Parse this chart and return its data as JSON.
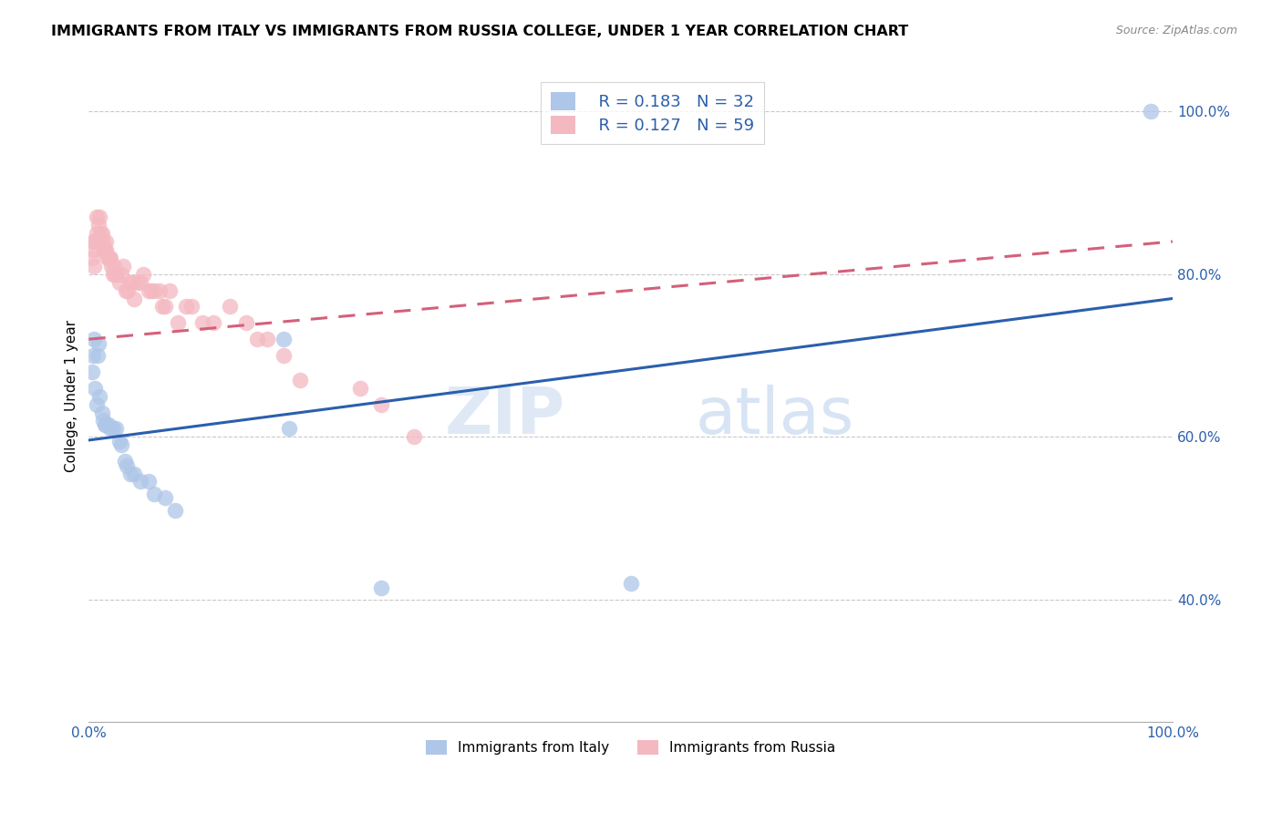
{
  "title": "IMMIGRANTS FROM ITALY VS IMMIGRANTS FROM RUSSIA COLLEGE, UNDER 1 YEAR CORRELATION CHART",
  "source": "Source: ZipAtlas.com",
  "ylabel": "College, Under 1 year",
  "xlim": [
    0,
    1
  ],
  "ylim": [
    0.25,
    1.05
  ],
  "yticks": [
    0.4,
    0.6,
    0.8,
    1.0
  ],
  "ytick_labels": [
    "40.0%",
    "60.0%",
    "80.0%",
    "100.0%"
  ],
  "legend_r_italy": "R = 0.183",
  "legend_n_italy": "N = 32",
  "legend_r_russia": "R = 0.127",
  "legend_n_russia": "N = 59",
  "italy_color": "#aec6e8",
  "russia_color": "#f4b8c1",
  "italy_line_color": "#2b5fac",
  "russia_line_color": "#d4607a",
  "watermark_zip": "ZIP",
  "watermark_atlas": "atlas",
  "italy_points_x": [
    0.003,
    0.004,
    0.005,
    0.006,
    0.007,
    0.008,
    0.009,
    0.01,
    0.012,
    0.013,
    0.015,
    0.016,
    0.018,
    0.02,
    0.022,
    0.025,
    0.028,
    0.03,
    0.033,
    0.035,
    0.038,
    0.042,
    0.048,
    0.055,
    0.06,
    0.07,
    0.08,
    0.18,
    0.185,
    0.27,
    0.5,
    0.98
  ],
  "italy_points_y": [
    0.68,
    0.7,
    0.72,
    0.66,
    0.64,
    0.7,
    0.715,
    0.65,
    0.63,
    0.62,
    0.615,
    0.615,
    0.615,
    0.61,
    0.61,
    0.61,
    0.595,
    0.59,
    0.57,
    0.565,
    0.555,
    0.555,
    0.545,
    0.545,
    0.53,
    0.525,
    0.51,
    0.72,
    0.61,
    0.415,
    0.42,
    1.0
  ],
  "russia_points_x": [
    0.003,
    0.004,
    0.005,
    0.005,
    0.006,
    0.007,
    0.007,
    0.008,
    0.009,
    0.01,
    0.01,
    0.011,
    0.012,
    0.013,
    0.014,
    0.015,
    0.016,
    0.016,
    0.017,
    0.018,
    0.019,
    0.02,
    0.021,
    0.022,
    0.023,
    0.024,
    0.025,
    0.028,
    0.03,
    0.032,
    0.034,
    0.036,
    0.038,
    0.04,
    0.042,
    0.045,
    0.048,
    0.05,
    0.055,
    0.058,
    0.06,
    0.065,
    0.068,
    0.07,
    0.075,
    0.082,
    0.09,
    0.095,
    0.105,
    0.115,
    0.13,
    0.145,
    0.155,
    0.165,
    0.18,
    0.195,
    0.25,
    0.27,
    0.3
  ],
  "russia_points_y": [
    0.82,
    0.84,
    0.83,
    0.81,
    0.84,
    0.87,
    0.85,
    0.84,
    0.86,
    0.87,
    0.84,
    0.85,
    0.85,
    0.84,
    0.83,
    0.83,
    0.84,
    0.83,
    0.82,
    0.82,
    0.82,
    0.82,
    0.81,
    0.8,
    0.81,
    0.8,
    0.8,
    0.79,
    0.8,
    0.81,
    0.78,
    0.78,
    0.79,
    0.79,
    0.77,
    0.79,
    0.79,
    0.8,
    0.78,
    0.78,
    0.78,
    0.78,
    0.76,
    0.76,
    0.78,
    0.74,
    0.76,
    0.76,
    0.74,
    0.74,
    0.76,
    0.74,
    0.72,
    0.72,
    0.7,
    0.67,
    0.66,
    0.64,
    0.6
  ],
  "italy_trend_x": [
    0.0,
    1.0
  ],
  "italy_trend_y": [
    0.596,
    0.77
  ],
  "russia_trend_x": [
    0.0,
    1.0
  ],
  "russia_trend_y": [
    0.72,
    0.84
  ]
}
